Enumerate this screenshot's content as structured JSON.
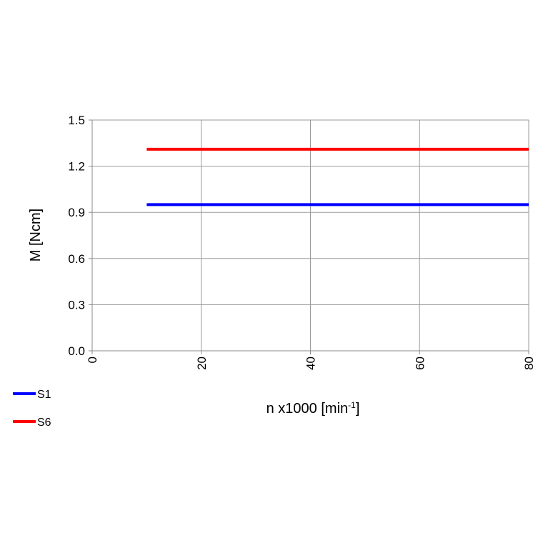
{
  "chart_data": {
    "type": "line",
    "xlabel": "n x1000 [min",
    "xlabel_sup": "-1",
    "xlabel_suffix": "]",
    "ylabel": "M [Ncm]",
    "xlim": [
      0,
      80
    ],
    "ylim": [
      0,
      1.5
    ],
    "x_ticks": [
      "0",
      "20",
      "40",
      "60",
      "80"
    ],
    "y_ticks": [
      "0.0",
      "0.3",
      "0.6",
      "0.9",
      "1.2",
      "1.5"
    ],
    "x_tick_values": [
      0,
      20,
      40,
      60,
      80
    ],
    "y_tick_values": [
      0,
      0.3,
      0.6,
      0.9,
      1.2,
      1.5
    ],
    "x_tick_rotation": "vertical",
    "grid": true,
    "legend_position": "bottom-left",
    "series": [
      {
        "name": "S1",
        "color": "#0000ff",
        "x": [
          10,
          80
        ],
        "y": [
          0.95,
          0.95
        ]
      },
      {
        "name": "S6",
        "color": "#ff0000",
        "x": [
          10,
          80
        ],
        "y": [
          1.31,
          1.31
        ]
      }
    ]
  }
}
